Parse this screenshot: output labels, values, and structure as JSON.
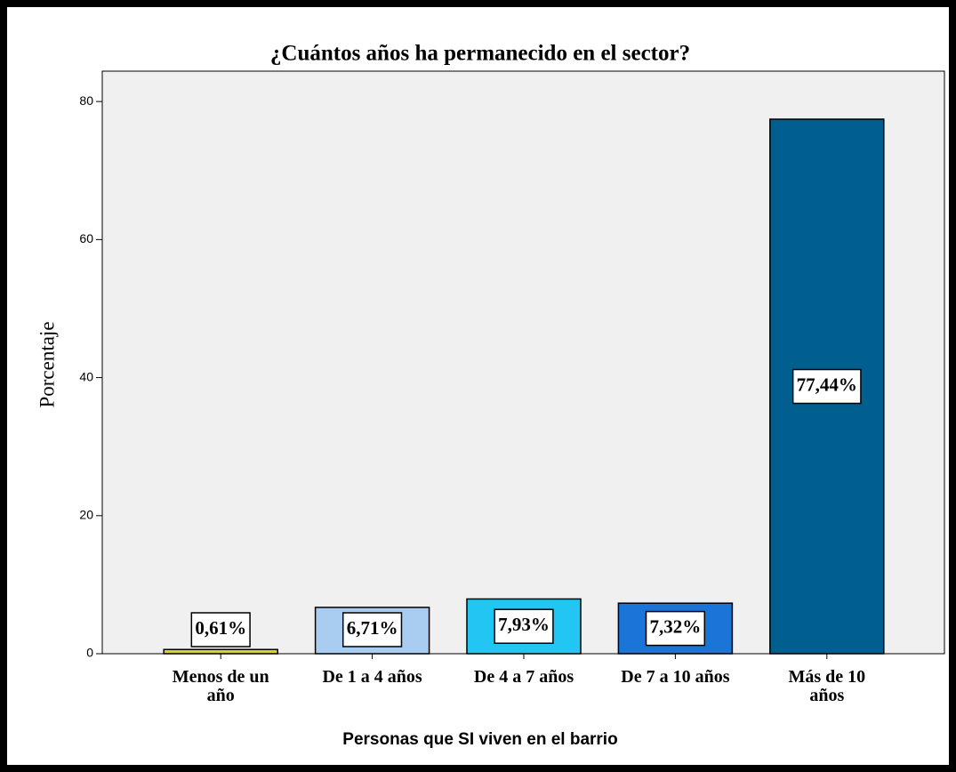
{
  "chart_data": {
    "type": "bar",
    "title": "¿Cuántos años ha permanecido en el sector?",
    "x_label": "Personas que SI viven en el barrio",
    "y_label": "Porcentaje",
    "categories": [
      "Menos de un\naño",
      "De 1 a 4 años",
      "De 4 a 7 años",
      "De 7 a 10 años",
      "Más de 10\naños"
    ],
    "values": [
      0.61,
      6.71,
      7.93,
      7.32,
      77.44
    ],
    "value_labels": [
      "0,61%",
      "6,71%",
      "7,93%",
      "7,32%",
      "77,44%"
    ],
    "colors": [
      "#d6d62a",
      "#a9cdf0",
      "#22c6f2",
      "#1b74d8",
      "#005f8f"
    ],
    "ylim": [
      0,
      84.4
    ],
    "yticks": [
      0,
      20,
      40,
      60,
      80
    ],
    "grid": false
  }
}
